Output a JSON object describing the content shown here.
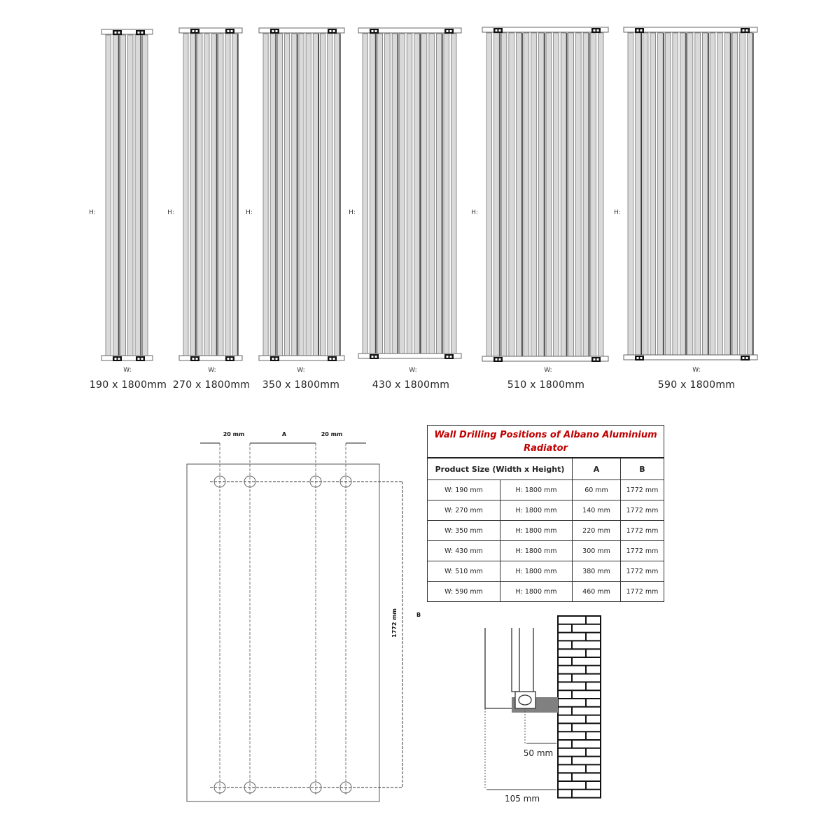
{
  "radiators": [
    {
      "size": "190 x 1800mm",
      "h_label": "H:",
      "w_label": "W:"
    },
    {
      "size": "270 x 1800mm",
      "h_label": "H:",
      "w_label": "W:"
    },
    {
      "size": "350 x 1800mm",
      "h_label": "H:",
      "w_label": "W:"
    },
    {
      "size": "430 x 1800mm",
      "h_label": "H:",
      "w_label": "W:"
    },
    {
      "size": "510 x 1800mm",
      "h_label": "H:",
      "w_label": "W:"
    },
    {
      "size": "590 x 1800mm",
      "h_label": "H:",
      "w_label": "W:"
    }
  ],
  "drilling_diagram": {
    "left_offset": "20 mm",
    "spacing_label": "A",
    "right_offset": "20 mm",
    "height_dim": "1772 mm",
    "height_label": "B"
  },
  "table": {
    "title": "Wall Drilling Positions of Albano Aluminium Radiator",
    "title_color": "#c00000",
    "headers": [
      "Product Size (Width x Height)",
      "A",
      "B"
    ],
    "rows": [
      [
        "W: 190 mm",
        "H: 1800 mm",
        "60 mm",
        "1772 mm"
      ],
      [
        "W: 270 mm",
        "H: 1800 mm",
        "140 mm",
        "1772 mm"
      ],
      [
        "W: 350 mm",
        "H: 1800 mm",
        "220 mm",
        "1772 mm"
      ],
      [
        "W: 430 mm",
        "H: 1800 mm",
        "300 mm",
        "1772 mm"
      ],
      [
        "W: 510 mm",
        "H: 1800 mm",
        "380 mm",
        "1772 mm"
      ],
      [
        "W: 590 mm",
        "H: 1800 mm",
        "460 mm",
        "1772 mm"
      ]
    ]
  },
  "wall_diagram": {
    "bracket_to_wall": "50 mm",
    "front_to_wall": "105 mm"
  }
}
